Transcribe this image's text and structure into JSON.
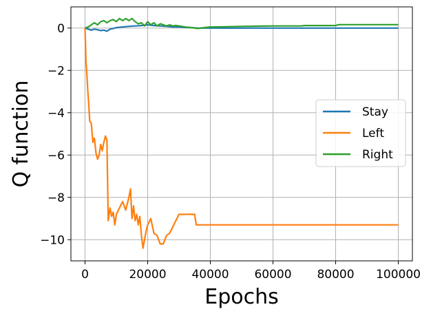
{
  "chart_data": {
    "type": "line",
    "title": "",
    "xlabel": "Epochs",
    "ylabel": "Q function",
    "xlim": [
      -4500,
      104500
    ],
    "ylim": [
      -11,
      1
    ],
    "xticks": [
      0,
      20000,
      40000,
      60000,
      80000,
      100000
    ],
    "xtick_labels": [
      "0",
      "20000",
      "40000",
      "60000",
      "80000",
      "100000"
    ],
    "yticks": [
      0,
      -2,
      -4,
      -6,
      -8,
      -10
    ],
    "ytick_labels": [
      "0",
      "−2",
      "−4",
      "−6",
      "−8",
      "−10"
    ],
    "grid": true,
    "legend_position": "center-right",
    "series": [
      {
        "name": "Stay",
        "color": "#1f77b4",
        "x": [
          0,
          1000,
          2000,
          3000,
          4000,
          5000,
          6000,
          7000,
          8000,
          9000,
          10000,
          12000,
          14000,
          16000,
          18000,
          20000,
          22000,
          24000,
          26000,
          28000,
          30000,
          32000,
          34000,
          36000,
          38000,
          40000,
          50000,
          60000,
          70000,
          80000,
          90000,
          100000
        ],
        "y": [
          0.0,
          -0.05,
          -0.1,
          -0.05,
          -0.08,
          -0.12,
          -0.1,
          -0.15,
          -0.05,
          -0.02,
          0.02,
          0.05,
          0.08,
          0.1,
          0.12,
          0.15,
          0.12,
          0.1,
          0.08,
          0.05,
          0.05,
          0.03,
          0.02,
          0.0,
          0.0,
          0.0,
          0.0,
          0.0,
          0.0,
          0.0,
          0.0,
          0.0
        ]
      },
      {
        "name": "Left",
        "color": "#ff7f0e",
        "x": [
          0,
          300,
          600,
          900,
          1200,
          1500,
          2000,
          2500,
          3000,
          3500,
          4000,
          4500,
          5000,
          5500,
          6000,
          6500,
          7000,
          7400,
          8000,
          8500,
          9000,
          9500,
          10000,
          11000,
          12000,
          13000,
          14000,
          14500,
          15000,
          15500,
          16000,
          16500,
          17000,
          17500,
          18000,
          18500,
          19000,
          19500,
          20000,
          21000,
          22000,
          23000,
          24000,
          25000,
          26000,
          27000,
          28000,
          29000,
          30000,
          32000,
          34000,
          35000,
          35500,
          40000,
          60000,
          80000,
          100000
        ],
        "y": [
          0,
          -1.5,
          -2.2,
          -3.0,
          -3.6,
          -4.4,
          -4.5,
          -5.4,
          -5.2,
          -5.9,
          -6.2,
          -6.0,
          -5.5,
          -5.8,
          -5.4,
          -5.1,
          -5.3,
          -9.1,
          -8.5,
          -8.9,
          -8.7,
          -9.3,
          -8.8,
          -8.5,
          -8.2,
          -8.6,
          -8.0,
          -7.6,
          -9.0,
          -8.4,
          -9.1,
          -8.8,
          -9.3,
          -8.9,
          -9.8,
          -10.4,
          -10.0,
          -9.6,
          -9.3,
          -9.0,
          -9.7,
          -9.8,
          -10.2,
          -10.2,
          -9.8,
          -9.7,
          -9.4,
          -9.1,
          -8.8,
          -8.8,
          -8.8,
          -8.8,
          -9.3,
          -9.3,
          -9.3,
          -9.3,
          -9.3
        ]
      },
      {
        "name": "Right",
        "color": "#2ca02c",
        "x": [
          0,
          1000,
          2000,
          3000,
          4000,
          5000,
          6000,
          7000,
          8000,
          9000,
          10000,
          11000,
          12000,
          13000,
          14000,
          15000,
          16000,
          17000,
          18000,
          19000,
          20000,
          21000,
          22000,
          23000,
          24000,
          25000,
          26000,
          27000,
          28000,
          29000,
          30000,
          32000,
          34000,
          36000,
          38000,
          40000,
          45000,
          50000,
          55000,
          60000,
          65000,
          69000,
          70000,
          80000,
          81000,
          100000
        ],
        "y": [
          0,
          0.05,
          0.15,
          0.25,
          0.15,
          0.3,
          0.35,
          0.25,
          0.35,
          0.4,
          0.3,
          0.45,
          0.35,
          0.45,
          0.35,
          0.45,
          0.3,
          0.2,
          0.25,
          0.1,
          0.3,
          0.15,
          0.25,
          0.1,
          0.2,
          0.15,
          0.1,
          0.15,
          0.1,
          0.12,
          0.1,
          0.05,
          0.02,
          -0.02,
          0.02,
          0.05,
          0.06,
          0.08,
          0.09,
          0.1,
          0.1,
          0.1,
          0.12,
          0.12,
          0.16,
          0.16
        ]
      }
    ]
  }
}
